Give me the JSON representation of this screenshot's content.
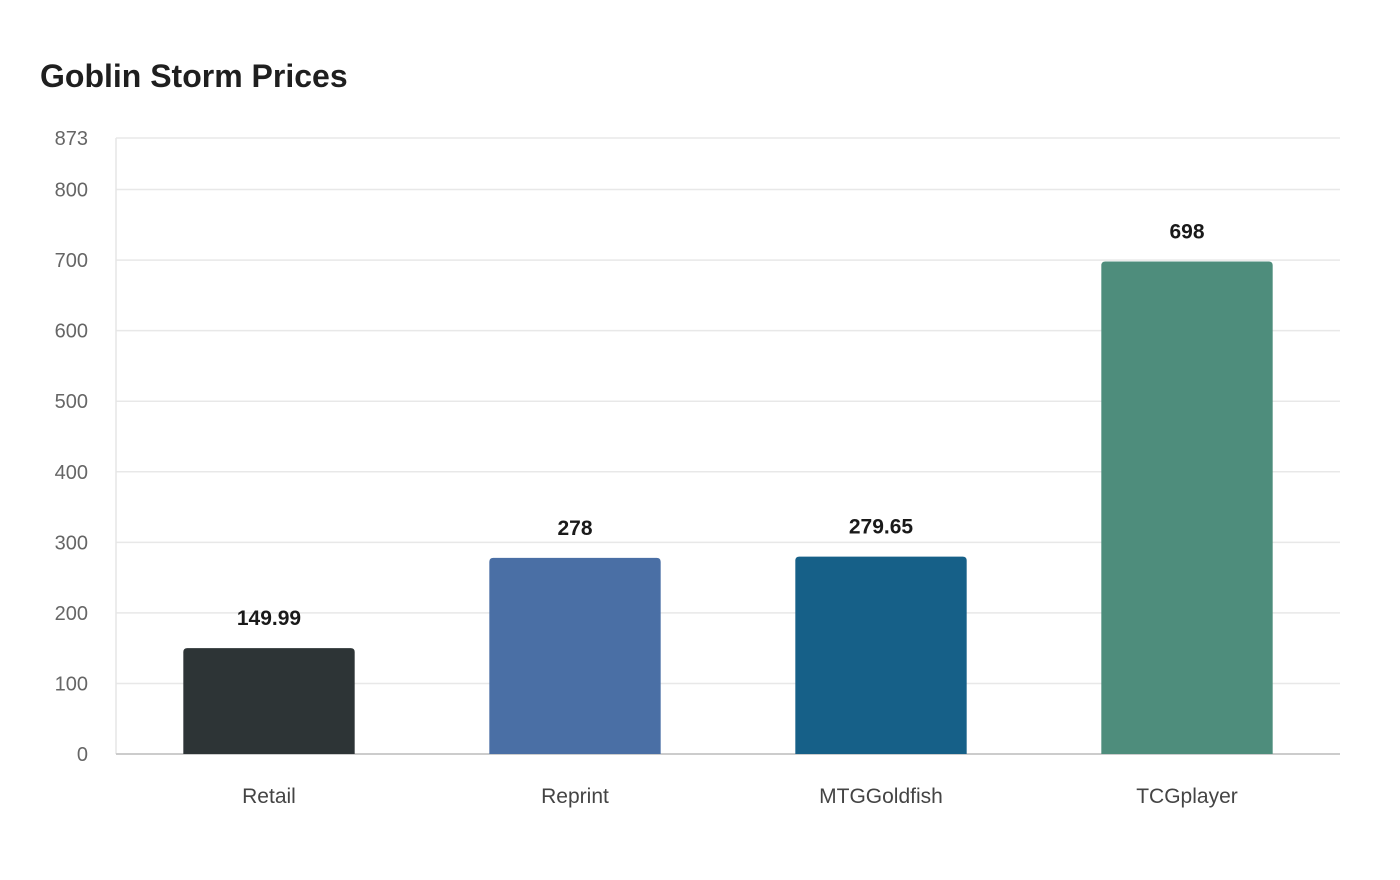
{
  "chart_data": {
    "type": "bar",
    "title": "Goblin Storm Prices",
    "xlabel": "",
    "ylabel": "",
    "categories": [
      "Retail",
      "Reprint",
      "MTGGoldfish",
      "TCGplayer"
    ],
    "values": [
      149.99,
      278,
      279.65,
      698
    ],
    "value_labels": [
      "149.99",
      "278",
      "279.65",
      "698"
    ],
    "colors": [
      "#2d3436",
      "#4a6fa5",
      "#166088",
      "#4e8d7c"
    ],
    "ylim": [
      0,
      873
    ],
    "yticks": [
      0,
      100,
      200,
      300,
      400,
      500,
      600,
      700,
      800,
      873
    ],
    "grid": true,
    "legend": "none"
  }
}
